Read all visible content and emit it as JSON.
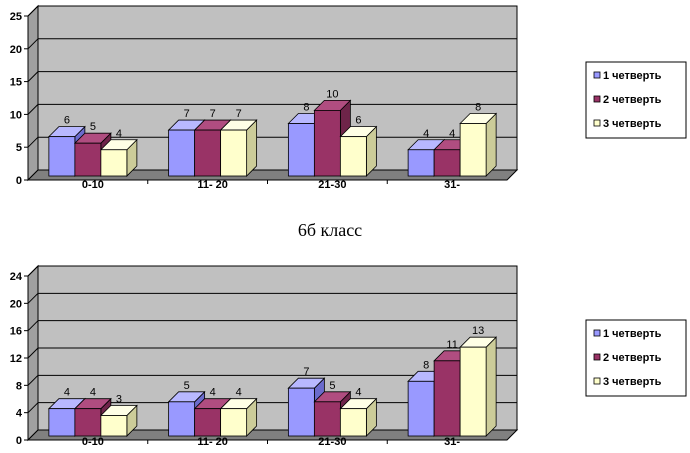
{
  "caption": "6б класс",
  "colors": {
    "wall": "#c0c0c0",
    "floor": "#808080",
    "s1": "#9999ff",
    "s2": "#993366",
    "s3": "#ffffcc"
  },
  "chart_data": [
    {
      "type": "bar",
      "categories": [
        "0-10",
        "11- 20",
        "21-30",
        "31-"
      ],
      "series": [
        {
          "name": "1 четверть",
          "values": [
            6,
            7,
            8,
            4
          ]
        },
        {
          "name": "2 четверть",
          "values": [
            5,
            7,
            10,
            4
          ]
        },
        {
          "name": "3 четверть",
          "values": [
            4,
            7,
            6,
            8
          ]
        }
      ],
      "ylim": [
        0,
        25
      ],
      "yticks": [
        0,
        5,
        10,
        15,
        20,
        25
      ],
      "grid": true,
      "legend": "right"
    },
    {
      "type": "bar",
      "categories": [
        "0-10",
        "11- 20",
        "21-30",
        "31-"
      ],
      "series": [
        {
          "name": "1 четверть",
          "values": [
            4,
            5,
            7,
            8
          ]
        },
        {
          "name": "2 четверть",
          "values": [
            4,
            4,
            5,
            11
          ]
        },
        {
          "name": "3 четверть",
          "values": [
            3,
            4,
            4,
            13
          ]
        }
      ],
      "ylim": [
        0,
        24
      ],
      "yticks": [
        0,
        4,
        8,
        12,
        16,
        20,
        24
      ],
      "grid": true,
      "legend": "right"
    }
  ]
}
